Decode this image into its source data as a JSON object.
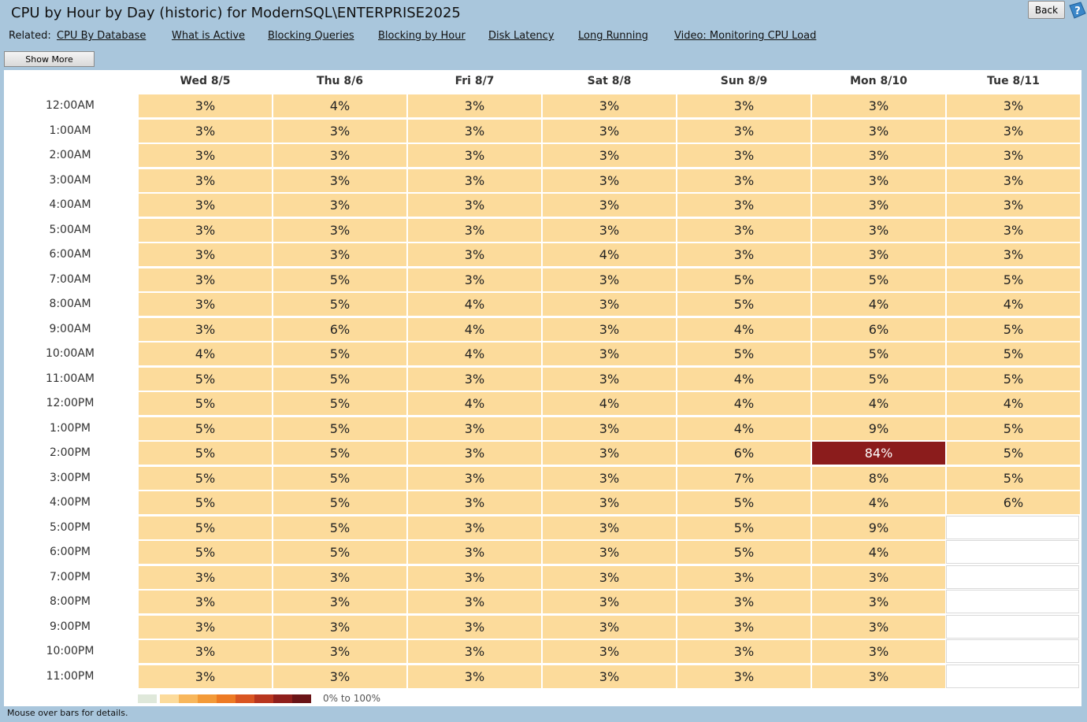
{
  "page": {
    "title": "CPU by Hour by Day (historic) for ModernSQL\\ENTERPRISE2025",
    "back_label": "Back",
    "show_more_label": "Show More",
    "status_text": "Mouse over bars for details."
  },
  "related": {
    "label": "Related:",
    "links": [
      "CPU By Database",
      "What is Active",
      "Blocking Queries",
      "Blocking by Hour",
      "Disk Latency",
      "Long Running",
      "Video: Monitoring CPU Load"
    ]
  },
  "colors": {
    "background": "#a9c6dc",
    "cell_low": "#fcdb9b",
    "cell_high": "#8b1c1c"
  },
  "legend": {
    "label": "0% to 100%",
    "swatches": [
      "#dfe8da",
      "#fcdb9b",
      "#f8b75c",
      "#f39a38",
      "#ed7a24",
      "#d95522",
      "#b8361f",
      "#8f1f1c",
      "#6a1417"
    ]
  },
  "heatmap": {
    "days": [
      "Wed 8/5",
      "Thu 8/6",
      "Fri 8/7",
      "Sat 8/8",
      "Sun 8/9",
      "Mon 8/10",
      "Tue 8/11"
    ],
    "hours": [
      "12:00AM",
      "1:00AM",
      "2:00AM",
      "3:00AM",
      "4:00AM",
      "5:00AM",
      "6:00AM",
      "7:00AM",
      "8:00AM",
      "9:00AM",
      "10:00AM",
      "11:00AM",
      "12:00PM",
      "1:00PM",
      "2:00PM",
      "3:00PM",
      "4:00PM",
      "5:00PM",
      "6:00PM",
      "7:00PM",
      "8:00PM",
      "9:00PM",
      "10:00PM",
      "11:00PM"
    ],
    "values": [
      [
        "3%",
        "4%",
        "3%",
        "3%",
        "3%",
        "3%",
        "3%"
      ],
      [
        "3%",
        "3%",
        "3%",
        "3%",
        "3%",
        "3%",
        "3%"
      ],
      [
        "3%",
        "3%",
        "3%",
        "3%",
        "3%",
        "3%",
        "3%"
      ],
      [
        "3%",
        "3%",
        "3%",
        "3%",
        "3%",
        "3%",
        "3%"
      ],
      [
        "3%",
        "3%",
        "3%",
        "3%",
        "3%",
        "3%",
        "3%"
      ],
      [
        "3%",
        "3%",
        "3%",
        "3%",
        "3%",
        "3%",
        "3%"
      ],
      [
        "3%",
        "3%",
        "3%",
        "4%",
        "3%",
        "3%",
        "3%"
      ],
      [
        "3%",
        "5%",
        "3%",
        "3%",
        "5%",
        "5%",
        "5%"
      ],
      [
        "3%",
        "5%",
        "4%",
        "3%",
        "5%",
        "4%",
        "4%"
      ],
      [
        "3%",
        "6%",
        "4%",
        "3%",
        "4%",
        "6%",
        "5%"
      ],
      [
        "4%",
        "5%",
        "4%",
        "3%",
        "5%",
        "5%",
        "5%"
      ],
      [
        "5%",
        "5%",
        "3%",
        "3%",
        "4%",
        "5%",
        "5%"
      ],
      [
        "5%",
        "5%",
        "4%",
        "4%",
        "4%",
        "4%",
        "4%"
      ],
      [
        "5%",
        "5%",
        "3%",
        "3%",
        "4%",
        "9%",
        "5%"
      ],
      [
        "5%",
        "5%",
        "3%",
        "3%",
        "6%",
        "84%",
        "5%"
      ],
      [
        "5%",
        "5%",
        "3%",
        "3%",
        "7%",
        "8%",
        "5%"
      ],
      [
        "5%",
        "5%",
        "3%",
        "3%",
        "5%",
        "4%",
        "6%"
      ],
      [
        "5%",
        "5%",
        "3%",
        "3%",
        "5%",
        "9%",
        ""
      ],
      [
        "5%",
        "5%",
        "3%",
        "3%",
        "5%",
        "4%",
        ""
      ],
      [
        "3%",
        "3%",
        "3%",
        "3%",
        "3%",
        "3%",
        ""
      ],
      [
        "3%",
        "3%",
        "3%",
        "3%",
        "3%",
        "3%",
        ""
      ],
      [
        "3%",
        "3%",
        "3%",
        "3%",
        "3%",
        "3%",
        ""
      ],
      [
        "3%",
        "3%",
        "3%",
        "3%",
        "3%",
        "3%",
        ""
      ],
      [
        "3%",
        "3%",
        "3%",
        "3%",
        "3%",
        "3%",
        ""
      ]
    ]
  }
}
